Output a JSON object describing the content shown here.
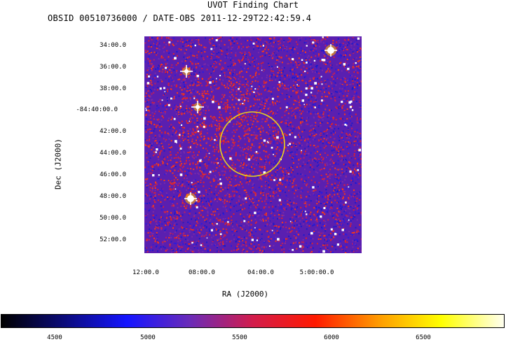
{
  "title": "UVOT Finding Chart",
  "subtitle": "OBSID 00510736000 / DATE-OBS 2011-12-29T22:42:59.4",
  "axes": {
    "y_label": "Dec (J2000)",
    "x_label": "RA (J2000)",
    "y_ticks": [
      "34:00.0",
      "36:00.0",
      "38:00.0",
      "-84:40:00.0",
      "42:00.0",
      "44:00.0",
      "46:00.0",
      "48:00.0",
      "50:00.0",
      "52:00.0"
    ],
    "x_ticks": [
      "12:00.0",
      "08:00.0",
      "04:00.0",
      "5:00:00.0"
    ]
  },
  "colorbar": {
    "ticks": [
      "4500",
      "5000",
      "5500",
      "6000",
      "6500"
    ],
    "colors": [
      "#000000",
      "#0b0b7a",
      "#1515ff",
      "#6a2bb8",
      "#d21c4c",
      "#ff1a00",
      "#ff9a00",
      "#ffff00",
      "#fffff0"
    ]
  },
  "image": {
    "background_color": "#5a1fb0",
    "circle_color": "#e8d21e"
  }
}
